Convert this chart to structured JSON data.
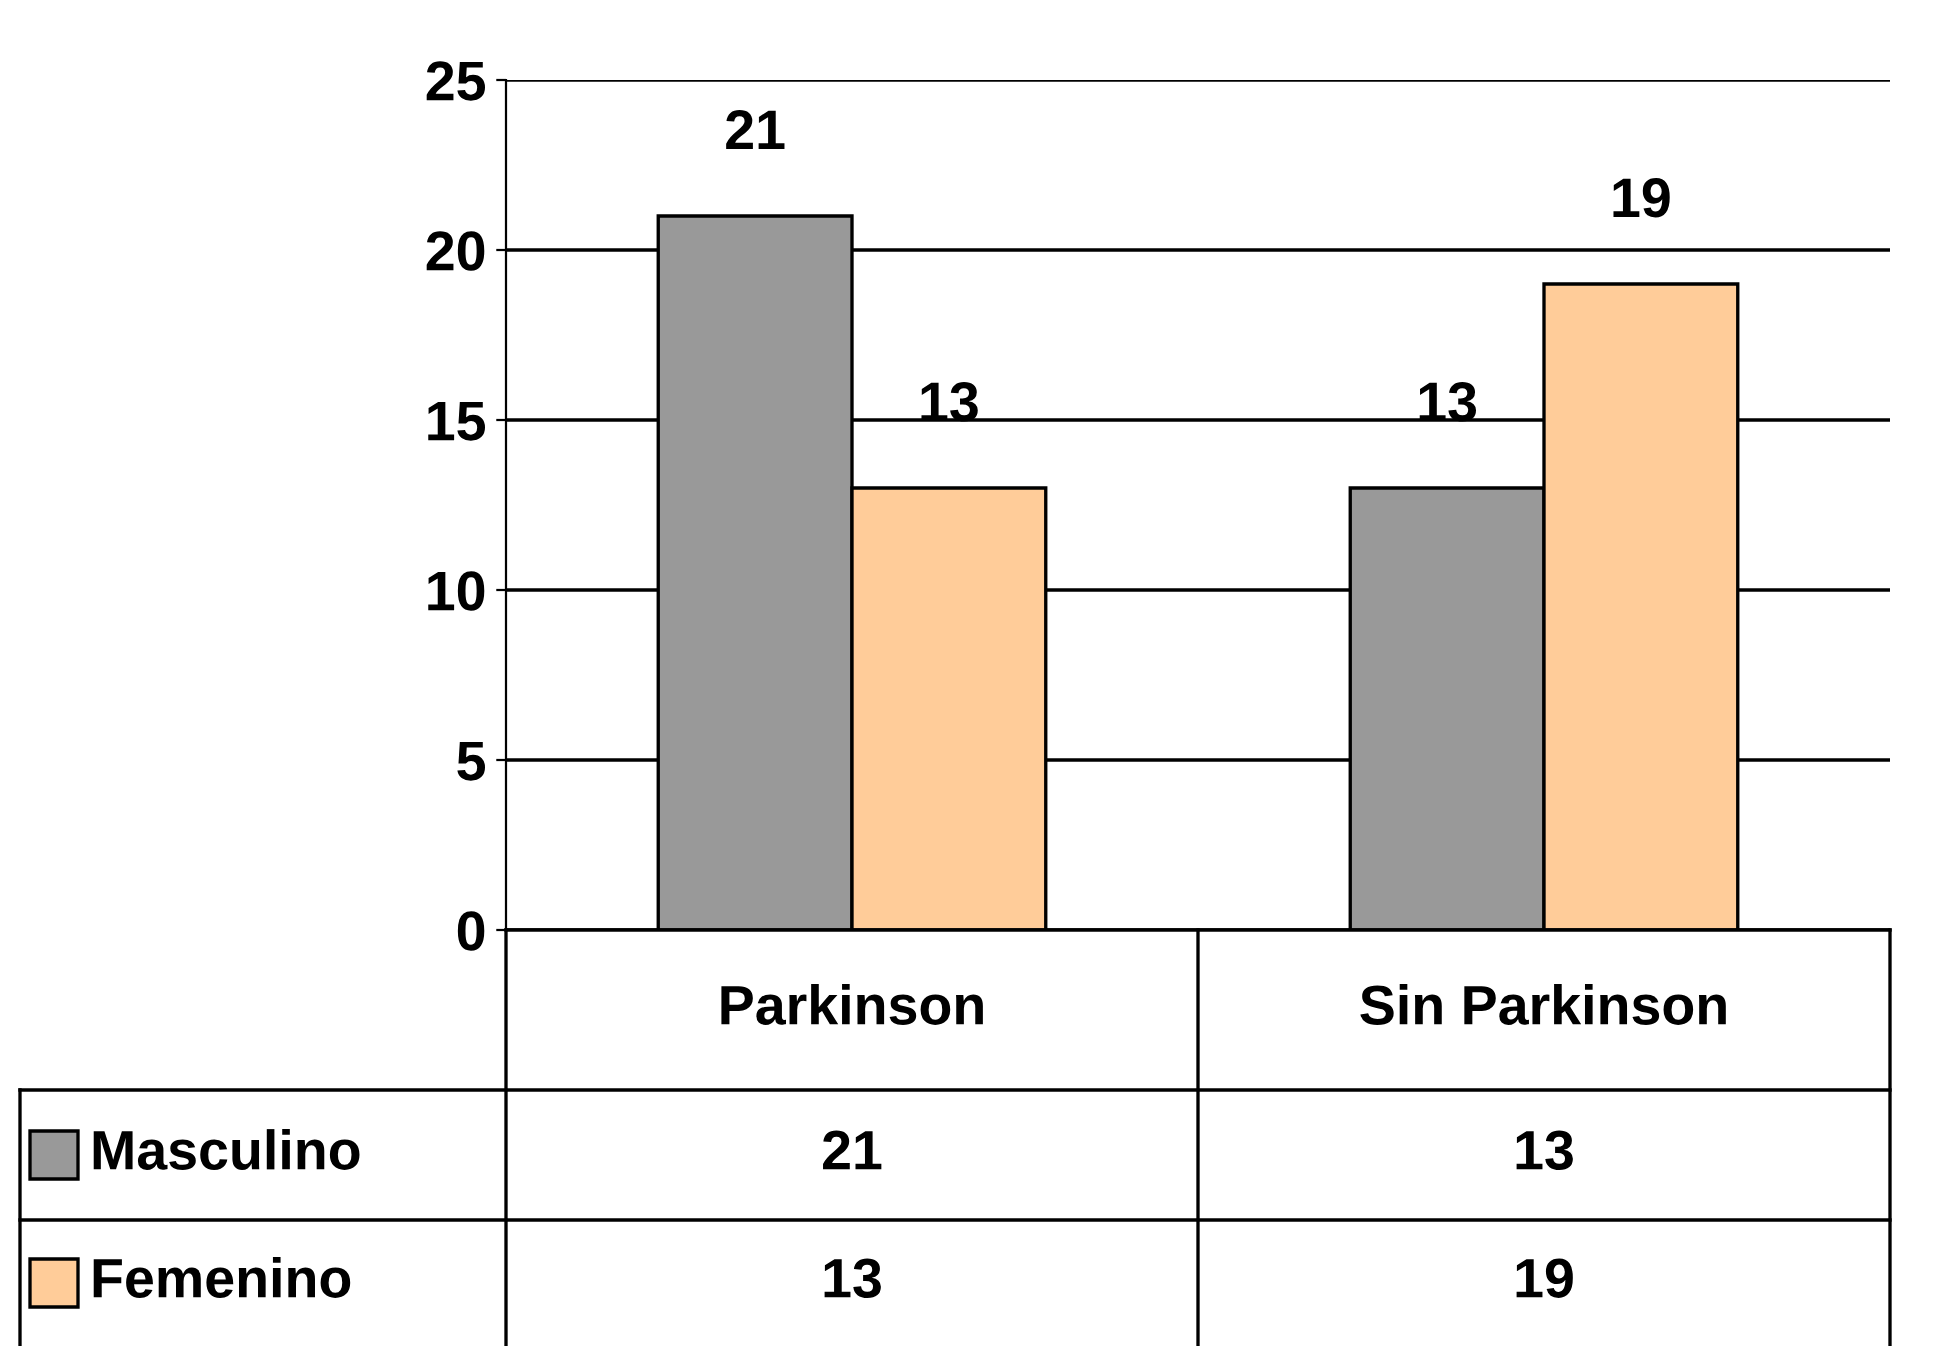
{
  "chart_data": {
    "type": "bar",
    "categories": [
      "Parkinson",
      "Sin Parkinson"
    ],
    "series": [
      {
        "name": "Masculino",
        "color": "#999999",
        "values": [
          21,
          13
        ],
        "value_labels": [
          "21",
          "13"
        ]
      },
      {
        "name": "Femenino",
        "color": "#ffcc99",
        "values": [
          13,
          19
        ],
        "value_labels": [
          "13",
          "19"
        ]
      }
    ],
    "ylim": [
      0,
      25
    ],
    "yticks": [
      0,
      5,
      10,
      15,
      20,
      25
    ],
    "grid": "y",
    "legend": "bottom",
    "annotations": [
      "21",
      "13",
      "13",
      "19"
    ]
  }
}
